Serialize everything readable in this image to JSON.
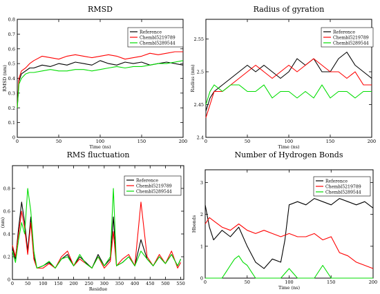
{
  "chart_data": [
    {
      "type": "line",
      "title": "RMSD",
      "xlabel": "Time (ns)",
      "ylabel": "RMSD (nm)",
      "xlim": [
        0,
        200
      ],
      "ylim": [
        0,
        0.8
      ],
      "xticks": [
        0,
        50,
        100,
        150,
        200
      ],
      "yticks": [
        0,
        0.1,
        0.2,
        0.3,
        0.4,
        0.5,
        0.6,
        0.7,
        0.8
      ],
      "legend": "top-right",
      "series": [
        {
          "name": "Reference",
          "color": "#000000",
          "x": [
            0,
            2,
            5,
            10,
            15,
            20,
            30,
            40,
            50,
            60,
            70,
            80,
            90,
            100,
            110,
            120,
            130,
            140,
            150,
            160,
            170,
            180,
            190,
            200
          ],
          "y": [
            0.2,
            0.38,
            0.43,
            0.45,
            0.47,
            0.47,
            0.49,
            0.48,
            0.5,
            0.49,
            0.51,
            0.5,
            0.49,
            0.52,
            0.5,
            0.49,
            0.51,
            0.5,
            0.51,
            0.49,
            0.5,
            0.51,
            0.5,
            0.49
          ]
        },
        {
          "name": "Chembl5219789",
          "color": "#ff0000",
          "x": [
            0,
            2,
            5,
            10,
            15,
            20,
            30,
            40,
            50,
            60,
            70,
            80,
            90,
            100,
            110,
            120,
            130,
            140,
            150,
            160,
            170,
            180,
            190,
            200
          ],
          "y": [
            0.2,
            0.4,
            0.45,
            0.47,
            0.5,
            0.52,
            0.55,
            0.54,
            0.53,
            0.55,
            0.56,
            0.55,
            0.54,
            0.55,
            0.56,
            0.55,
            0.53,
            0.54,
            0.55,
            0.57,
            0.56,
            0.57,
            0.58,
            0.58
          ]
        },
        {
          "name": "Chembl5289544",
          "color": "#00dd00",
          "x": [
            0,
            2,
            5,
            10,
            15,
            20,
            30,
            40,
            50,
            60,
            70,
            80,
            90,
            100,
            110,
            120,
            130,
            140,
            150,
            160,
            170,
            180,
            190,
            200
          ],
          "y": [
            0.2,
            0.36,
            0.4,
            0.43,
            0.44,
            0.44,
            0.45,
            0.46,
            0.45,
            0.45,
            0.46,
            0.46,
            0.45,
            0.46,
            0.47,
            0.48,
            0.47,
            0.48,
            0.48,
            0.49,
            0.5,
            0.5,
            0.51,
            0.52
          ]
        }
      ]
    },
    {
      "type": "line",
      "title": "Radius of gyration",
      "xlabel": "Time (ns)",
      "ylabel": "Radius (nm)",
      "xlim": [
        0,
        200
      ],
      "ylim": [
        2.4,
        2.58
      ],
      "xticks": [
        0,
        50,
        100,
        150,
        200
      ],
      "yticks": [
        2.4,
        2.45,
        2.5,
        2.55
      ],
      "legend": "top-right",
      "series": [
        {
          "name": "Reference",
          "color": "#000000",
          "x": [
            0,
            5,
            10,
            20,
            30,
            40,
            50,
            60,
            70,
            80,
            90,
            100,
            110,
            120,
            130,
            140,
            150,
            160,
            170,
            180,
            190,
            200
          ],
          "y": [
            2.44,
            2.46,
            2.47,
            2.48,
            2.49,
            2.5,
            2.51,
            2.5,
            2.51,
            2.5,
            2.49,
            2.5,
            2.52,
            2.51,
            2.52,
            2.5,
            2.5,
            2.52,
            2.53,
            2.51,
            2.5,
            2.49
          ]
        },
        {
          "name": "Chembl5219789",
          "color": "#ff0000",
          "x": [
            0,
            5,
            10,
            20,
            30,
            40,
            50,
            60,
            70,
            80,
            90,
            100,
            110,
            120,
            130,
            140,
            150,
            160,
            170,
            180,
            190,
            200
          ],
          "y": [
            2.43,
            2.45,
            2.47,
            2.47,
            2.48,
            2.49,
            2.5,
            2.51,
            2.5,
            2.49,
            2.5,
            2.51,
            2.5,
            2.51,
            2.52,
            2.51,
            2.5,
            2.5,
            2.49,
            2.5,
            2.48,
            2.48
          ]
        },
        {
          "name": "Chembl5289544",
          "color": "#00dd00",
          "x": [
            0,
            5,
            10,
            20,
            30,
            40,
            50,
            60,
            70,
            80,
            90,
            100,
            110,
            120,
            130,
            140,
            150,
            160,
            170,
            180,
            190,
            200
          ],
          "y": [
            2.45,
            2.47,
            2.48,
            2.47,
            2.48,
            2.48,
            2.47,
            2.47,
            2.48,
            2.46,
            2.47,
            2.47,
            2.46,
            2.47,
            2.46,
            2.48,
            2.46,
            2.47,
            2.47,
            2.46,
            2.47,
            2.47
          ]
        }
      ]
    },
    {
      "type": "line",
      "title": "RMS fluctuation",
      "xlabel": "Residue",
      "ylabel": "(nm)",
      "xlim": [
        0,
        560
      ],
      "ylim": [
        0,
        1
      ],
      "xticks": [
        0,
        50,
        100,
        150,
        200,
        250,
        300,
        350,
        400,
        450,
        500,
        550
      ],
      "yticks": [
        0,
        0.2,
        0.4,
        0.6,
        0.8
      ],
      "legend": "top-right",
      "series": [
        {
          "name": "Reference",
          "color": "#000000",
          "x": [
            0,
            10,
            20,
            30,
            40,
            50,
            60,
            70,
            80,
            100,
            120,
            140,
            160,
            180,
            200,
            220,
            240,
            260,
            280,
            300,
            320,
            330,
            340,
            360,
            380,
            400,
            420,
            440,
            460,
            480,
            500,
            520,
            540,
            550
          ],
          "y": [
            0.28,
            0.18,
            0.45,
            0.68,
            0.5,
            0.25,
            0.55,
            0.2,
            0.1,
            0.12,
            0.15,
            0.1,
            0.18,
            0.22,
            0.12,
            0.2,
            0.15,
            0.1,
            0.22,
            0.12,
            0.18,
            0.55,
            0.12,
            0.15,
            0.2,
            0.12,
            0.35,
            0.18,
            0.12,
            0.2,
            0.14,
            0.22,
            0.12,
            0.18
          ]
        },
        {
          "name": "Chembl5219789",
          "color": "#ff0000",
          "x": [
            0,
            10,
            20,
            30,
            40,
            50,
            60,
            70,
            80,
            100,
            120,
            140,
            160,
            180,
            200,
            220,
            240,
            260,
            280,
            300,
            320,
            330,
            340,
            360,
            380,
            400,
            420,
            440,
            460,
            480,
            500,
            520,
            540,
            550
          ],
          "y": [
            0.3,
            0.2,
            0.4,
            0.6,
            0.45,
            0.22,
            0.5,
            0.18,
            0.1,
            0.1,
            0.14,
            0.1,
            0.2,
            0.25,
            0.12,
            0.18,
            0.14,
            0.1,
            0.2,
            0.1,
            0.16,
            0.42,
            0.12,
            0.18,
            0.22,
            0.12,
            0.68,
            0.2,
            0.12,
            0.22,
            0.14,
            0.25,
            0.1,
            0.15
          ]
        },
        {
          "name": "Chembl5289544",
          "color": "#00dd00",
          "x": [
            0,
            10,
            20,
            30,
            40,
            50,
            60,
            70,
            80,
            100,
            120,
            140,
            160,
            180,
            200,
            220,
            240,
            260,
            280,
            300,
            320,
            330,
            340,
            360,
            380,
            400,
            420,
            440,
            460,
            480,
            500,
            520,
            540,
            550
          ],
          "y": [
            0.25,
            0.15,
            0.35,
            0.5,
            0.4,
            0.8,
            0.6,
            0.25,
            0.1,
            0.12,
            0.16,
            0.1,
            0.18,
            0.2,
            0.12,
            0.22,
            0.14,
            0.1,
            0.2,
            0.12,
            0.2,
            0.8,
            0.12,
            0.15,
            0.2,
            0.12,
            0.25,
            0.18,
            0.12,
            0.2,
            0.14,
            0.22,
            0.12,
            0.18
          ]
        }
      ]
    },
    {
      "type": "line",
      "title": "Number of Hydrogen Bonds",
      "xlabel": "Time (ns)",
      "ylabel": "Hbonds",
      "xlim": [
        0,
        200
      ],
      "ylim": [
        0,
        3.4
      ],
      "xticks": [
        0,
        50,
        100,
        150,
        200
      ],
      "yticks": [
        0,
        1,
        2,
        3
      ],
      "legend": "top-right",
      "series": [
        {
          "name": "Reference",
          "color": "#000000",
          "x": [
            0,
            5,
            10,
            20,
            30,
            40,
            50,
            60,
            70,
            80,
            90,
            95,
            100,
            110,
            120,
            130,
            140,
            150,
            160,
            170,
            180,
            190,
            200
          ],
          "y": [
            2.3,
            1.6,
            1.2,
            1.5,
            1.3,
            1.6,
            1.0,
            0.5,
            0.3,
            0.6,
            0.5,
            1.2,
            2.3,
            2.4,
            2.3,
            2.5,
            2.4,
            2.3,
            2.5,
            2.4,
            2.3,
            2.4,
            2.2
          ]
        },
        {
          "name": "Chembl5219789",
          "color": "#ff0000",
          "x": [
            0,
            5,
            10,
            20,
            30,
            40,
            50,
            60,
            70,
            80,
            90,
            100,
            110,
            120,
            130,
            140,
            150,
            160,
            170,
            180,
            190,
            200
          ],
          "y": [
            1.7,
            1.9,
            1.8,
            1.6,
            1.5,
            1.7,
            1.5,
            1.4,
            1.5,
            1.4,
            1.3,
            1.4,
            1.3,
            1.3,
            1.4,
            1.2,
            1.3,
            0.8,
            0.7,
            0.5,
            0.4,
            0.3
          ]
        },
        {
          "name": "Chembl5289544",
          "color": "#00dd00",
          "x": [
            0,
            10,
            20,
            25,
            30,
            35,
            40,
            45,
            50,
            55,
            60,
            70,
            80,
            90,
            100,
            110,
            120,
            130,
            140,
            150,
            160,
            170,
            180,
            190,
            200
          ],
          "y": [
            0,
            0,
            0,
            0.2,
            0.4,
            0.6,
            0.7,
            0.5,
            0.4,
            0.2,
            0,
            0,
            0,
            0,
            0.3,
            0,
            0,
            0,
            0.4,
            0,
            0,
            0,
            0,
            0,
            0
          ]
        }
      ]
    }
  ]
}
